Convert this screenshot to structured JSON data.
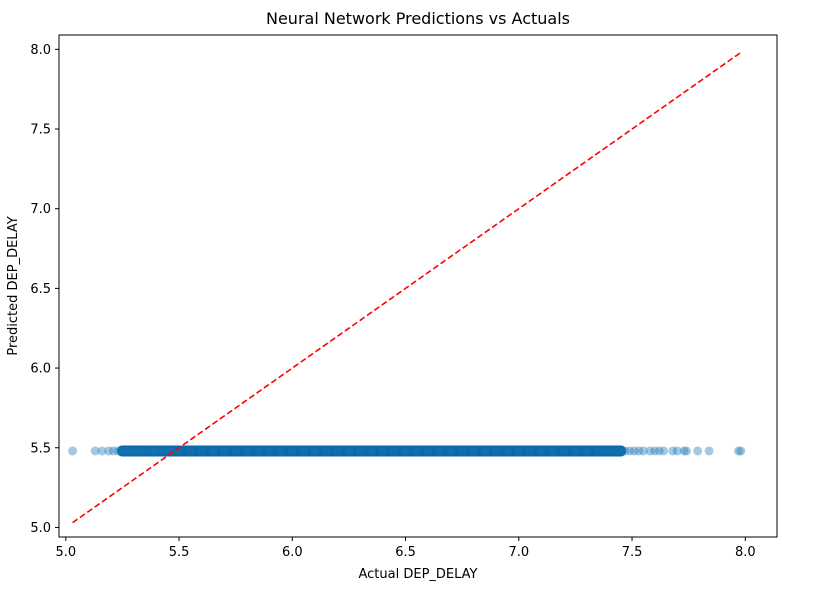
{
  "chart_data": {
    "type": "scatter",
    "title": "Neural Network Predictions vs Actuals",
    "xlabel": "Actual DEP_DELAY",
    "ylabel": "Predicted DEP_DELAY",
    "xlim": [
      4.97,
      8.14
    ],
    "ylim": [
      4.94,
      8.09
    ],
    "xticks": [
      "5.0",
      "5.5",
      "6.0",
      "6.5",
      "7.0",
      "7.5",
      "8.0"
    ],
    "yticks": [
      "5.0",
      "5.5",
      "6.0",
      "6.5",
      "7.0",
      "7.5",
      "8.0"
    ],
    "grid": false,
    "series": [
      {
        "type": "scatter",
        "color": "#1f77b4",
        "alpha": 0.4,
        "x": [
          5.03,
          5.13,
          5.16,
          5.19,
          5.21,
          5.23,
          5.25,
          5.27,
          5.29,
          5.31,
          5.33,
          5.35,
          5.38,
          5.4,
          5.43,
          5.46,
          5.5,
          5.55,
          5.6,
          5.65,
          5.7,
          5.75,
          5.8,
          5.85,
          5.9,
          5.95,
          6.0,
          6.05,
          6.1,
          6.15,
          6.2,
          6.25,
          6.3,
          6.35,
          6.4,
          6.45,
          6.5,
          6.55,
          6.6,
          6.65,
          6.7,
          6.75,
          6.8,
          6.85,
          6.9,
          6.95,
          7.0,
          7.05,
          7.1,
          7.15,
          7.2,
          7.25,
          7.3,
          7.35,
          7.38,
          7.41,
          7.44,
          7.47,
          7.49,
          7.51,
          7.53,
          7.55,
          7.58,
          7.6,
          7.62,
          7.64,
          7.68,
          7.7,
          7.73,
          7.74,
          7.79,
          7.84,
          7.97,
          7.98
        ],
        "y": [
          5.48,
          5.48,
          5.48,
          5.48,
          5.48,
          5.48,
          5.48,
          5.48,
          5.48,
          5.48,
          5.48,
          5.48,
          5.48,
          5.48,
          5.48,
          5.48,
          5.48,
          5.48,
          5.48,
          5.48,
          5.48,
          5.48,
          5.48,
          5.48,
          5.48,
          5.48,
          5.48,
          5.48,
          5.48,
          5.48,
          5.48,
          5.48,
          5.48,
          5.48,
          5.48,
          5.48,
          5.48,
          5.48,
          5.48,
          5.48,
          5.48,
          5.48,
          5.48,
          5.48,
          5.48,
          5.48,
          5.48,
          5.48,
          5.48,
          5.48,
          5.48,
          5.48,
          5.48,
          5.48,
          5.48,
          5.48,
          5.48,
          5.48,
          5.48,
          5.48,
          5.48,
          5.48,
          5.48,
          5.48,
          5.48,
          5.48,
          5.48,
          5.48,
          5.48,
          5.48,
          5.48,
          5.48,
          5.48,
          5.48
        ]
      },
      {
        "type": "line",
        "style": "dashed",
        "color": "#ff0000",
        "x": [
          5.03,
          7.98
        ],
        "y": [
          5.03,
          7.98
        ]
      }
    ]
  }
}
